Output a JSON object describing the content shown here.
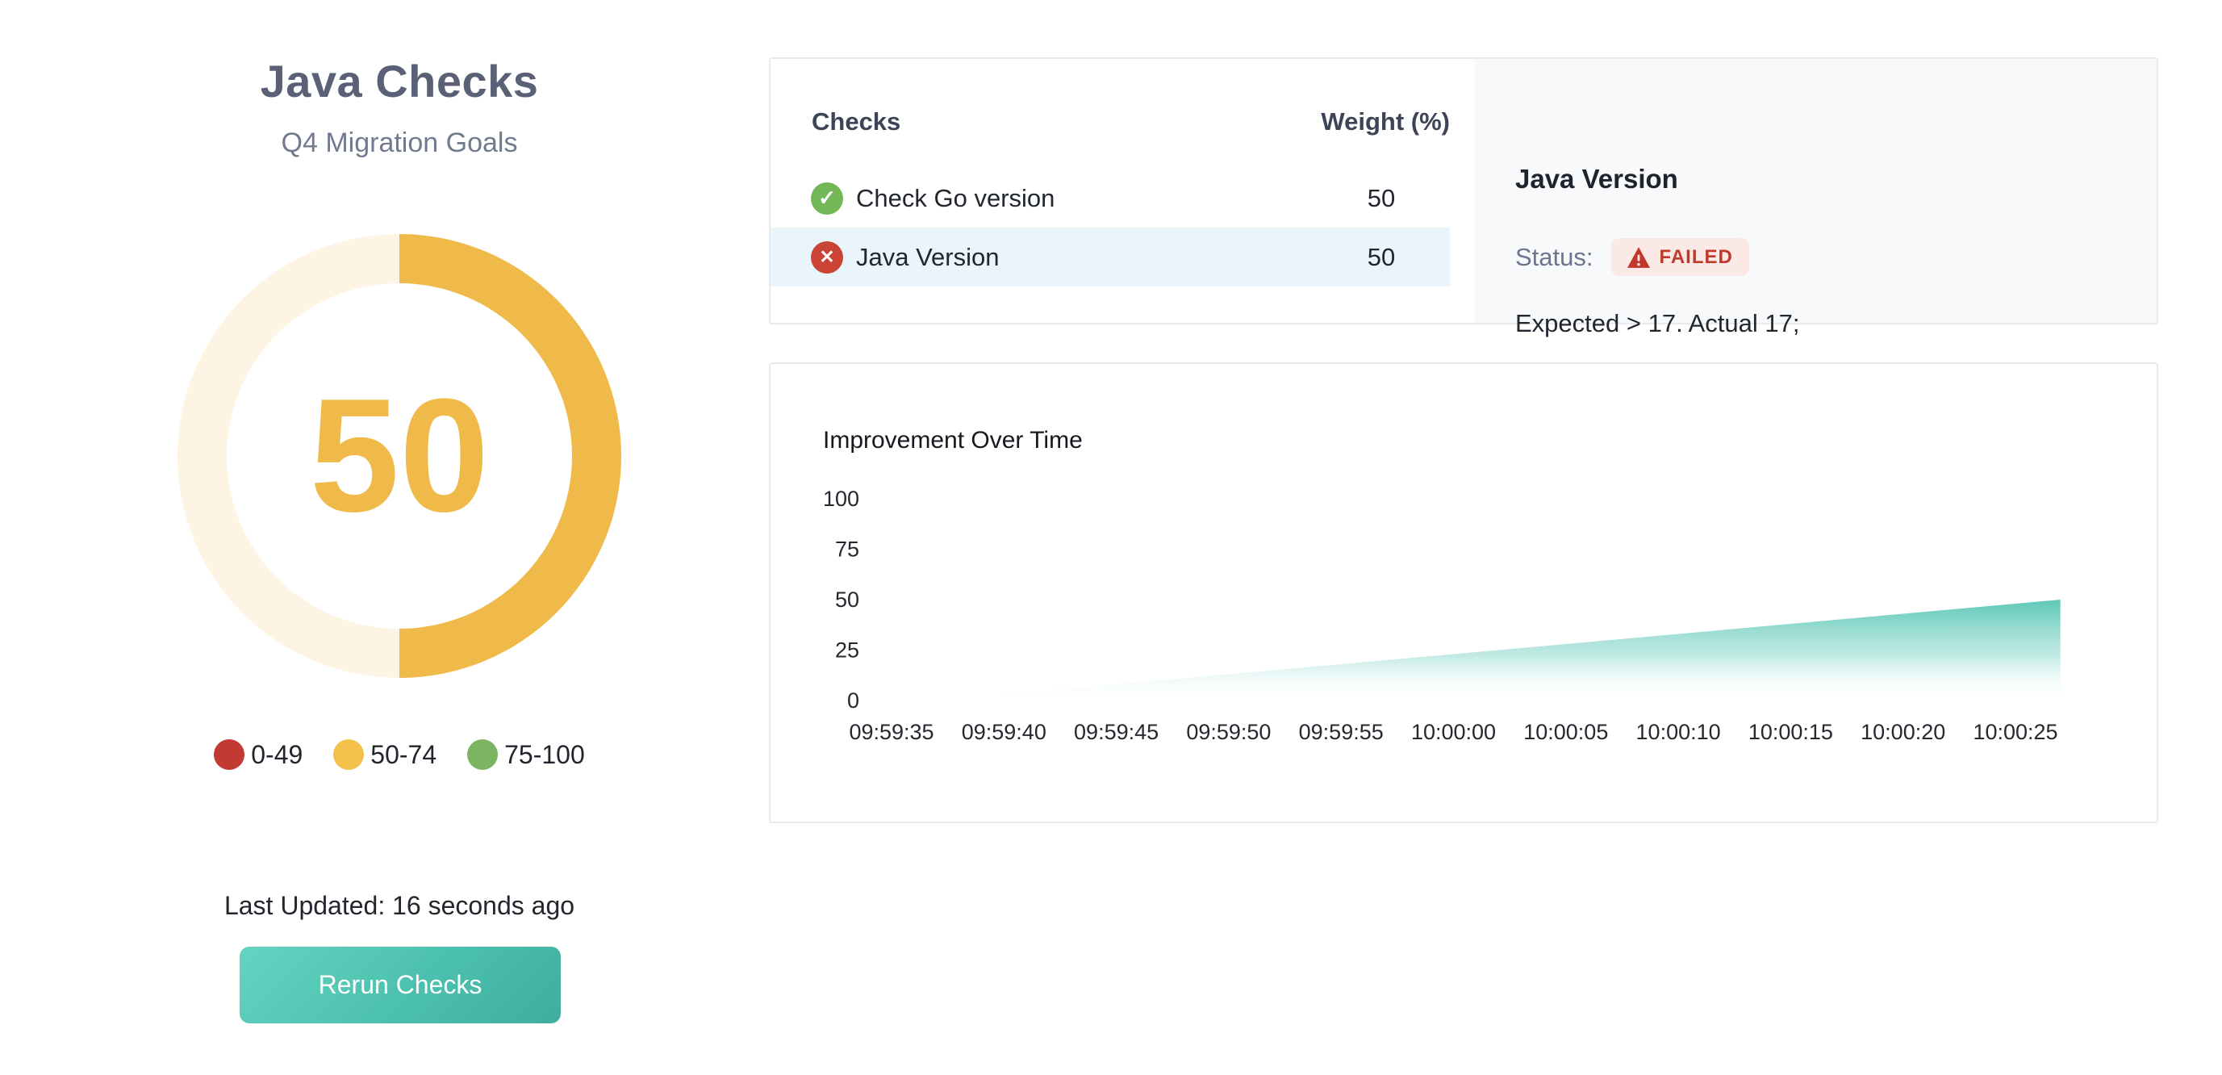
{
  "summary": {
    "title": "Java Checks",
    "subtitle": "Q4 Migration Goals",
    "score": "50",
    "score_color": "#f0ba4a",
    "ring_remainder_color": "#fdf4e4",
    "legend": [
      {
        "label": "0-49",
        "color": "#c23a31"
      },
      {
        "label": "50-74",
        "color": "#f3c14b"
      },
      {
        "label": "75-100",
        "color": "#7cb561"
      }
    ],
    "last_updated": "Last Updated: 16 seconds ago",
    "rerun_button_label": "Rerun Checks",
    "button_gradient": [
      "#65d4c2",
      "#3fae9d"
    ]
  },
  "checks_panel": {
    "header": {
      "checks": "Checks",
      "weight": "Weight (%)"
    },
    "rows": [
      {
        "name": "Check Go version",
        "weight": "50",
        "status": "passed",
        "icon": "check-circle",
        "icon_color": "#72b758"
      },
      {
        "name": "Java Version",
        "weight": "50",
        "status": "failed",
        "icon": "x-circle",
        "icon_color": "#cb4335",
        "selected": true
      }
    ],
    "selected_row_color": "#e9f5fa"
  },
  "detail_panel": {
    "title": "Java Version",
    "status_label": "Status:",
    "status_badge": "FAILED",
    "badge_bg": "#fbe9e6",
    "badge_color": "#c0392b",
    "message": "Expected > 17. Actual 17;"
  },
  "chart_data": {
    "type": "area",
    "title": "Improvement Over Time",
    "x": [
      "09:59:37",
      "09:59:42",
      "09:59:47",
      "09:59:52",
      "09:59:57",
      "10:00:02",
      "10:00:07",
      "10:00:12",
      "10:00:17",
      "10:00:22",
      "10:00:27"
    ],
    "values": [
      0,
      5,
      10,
      15,
      20,
      25,
      30,
      35,
      40,
      45,
      50
    ],
    "x_tick_labels": [
      "09:59:35",
      "09:59:40",
      "09:59:45",
      "09:59:50",
      "09:59:55",
      "10:00:00",
      "10:00:05",
      "10:00:10",
      "10:00:15",
      "10:00:20",
      "10:00:25"
    ],
    "y_tick_labels": [
      "100",
      "75",
      "50",
      "25",
      "0"
    ],
    "xlabel": "",
    "ylabel": "",
    "ylim": [
      0,
      100
    ],
    "grid": false,
    "legend_shown": false,
    "series_color": "#4fc3b2",
    "fill": "vertical-gradient-teal-to-white"
  }
}
